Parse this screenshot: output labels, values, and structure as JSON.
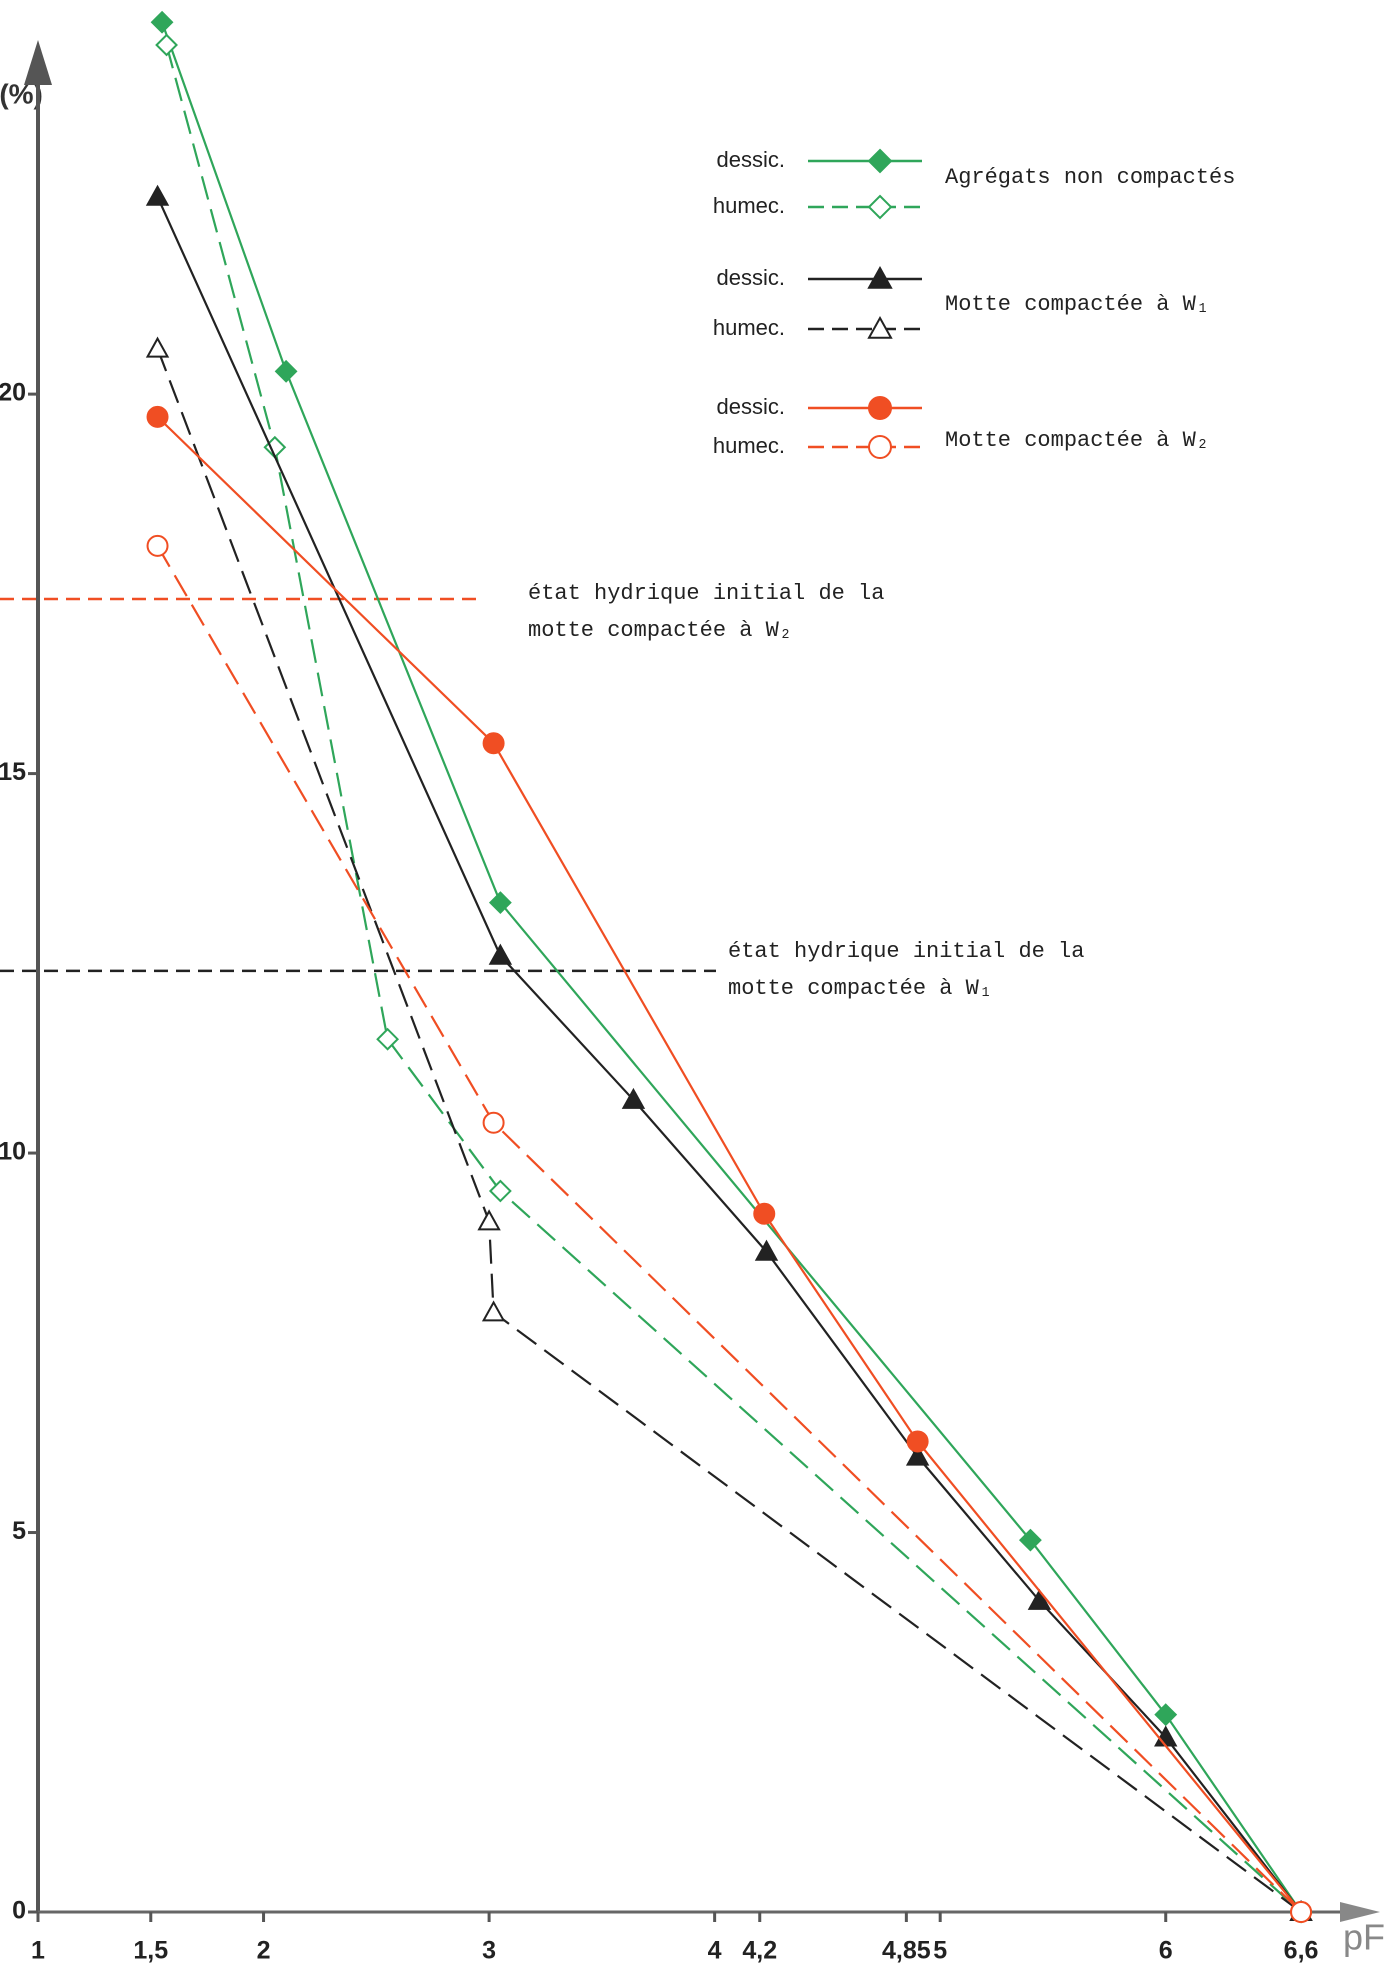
{
  "chart_data": {
    "type": "line",
    "y_label": "W (%)",
    "x_label": "pF",
    "xlim": [
      1,
      6.95
    ],
    "ylim": [
      0,
      24.6
    ],
    "xticks": [
      1,
      {
        "value": 1.5,
        "label": "1,5"
      },
      2,
      3,
      4,
      {
        "value": 4.2,
        "label": "4,2"
      },
      {
        "value": 4.85,
        "label": "4,85"
      },
      5,
      6,
      {
        "value": 6.6,
        "label": "6,6"
      }
    ],
    "yticks": [
      0,
      5,
      10,
      15,
      20
    ],
    "legend_groups": [
      "Agrégats non compactés",
      "Motte compactée à W₁",
      "Motte compactée à W₂"
    ],
    "series": [
      {
        "name": "dessic.",
        "color": "#2fa65a",
        "dash": false,
        "marker": "diamond",
        "x": [
          1.55,
          2.1,
          3.05,
          5.4,
          6.0,
          6.6
        ],
        "values": [
          24.9,
          20.3,
          13.3,
          4.9,
          2.6,
          0
        ]
      },
      {
        "name": "humec.",
        "color": "#2fa65a",
        "dash": true,
        "marker": "diamond",
        "x": [
          1.57,
          2.05,
          2.55,
          3.05,
          6.6
        ],
        "values": [
          24.6,
          19.3,
          11.5,
          9.5,
          0
        ]
      },
      {
        "name": "dessic.",
        "color": "#222222",
        "dash": false,
        "marker": "triangle",
        "x": [
          1.53,
          3.05,
          3.64,
          4.23,
          4.9,
          5.44,
          6.0,
          6.6
        ],
        "values": [
          22.6,
          12.6,
          10.7,
          8.7,
          6.0,
          4.1,
          2.3,
          0
        ]
      },
      {
        "name": "humec.",
        "color": "#222222",
        "dash": true,
        "marker": "triangle",
        "x": [
          1.53,
          3.0,
          3.02,
          6.6
        ],
        "values": [
          20.6,
          9.1,
          7.9,
          0
        ]
      },
      {
        "name": "dessic.",
        "color": "#f04e23",
        "dash": false,
        "marker": "circle",
        "x": [
          1.53,
          3.02,
          4.22,
          4.9,
          6.6
        ],
        "values": [
          19.7,
          15.4,
          9.2,
          6.2,
          0
        ]
      },
      {
        "name": "humec.",
        "color": "#f04e23",
        "dash": true,
        "marker": "circle",
        "x": [
          1.53,
          3.02,
          6.6
        ],
        "values": [
          18.0,
          10.4,
          0
        ]
      }
    ],
    "reference_lines": [
      {
        "value": 17.3,
        "color": "#f04e23",
        "label": [
          "état hydrique initial de la",
          "motte compactée à W₂"
        ]
      },
      {
        "value": 12.4,
        "color": "#222222",
        "label": [
          "état hydrique initial de la",
          "motte compactée à W₁"
        ]
      }
    ]
  }
}
